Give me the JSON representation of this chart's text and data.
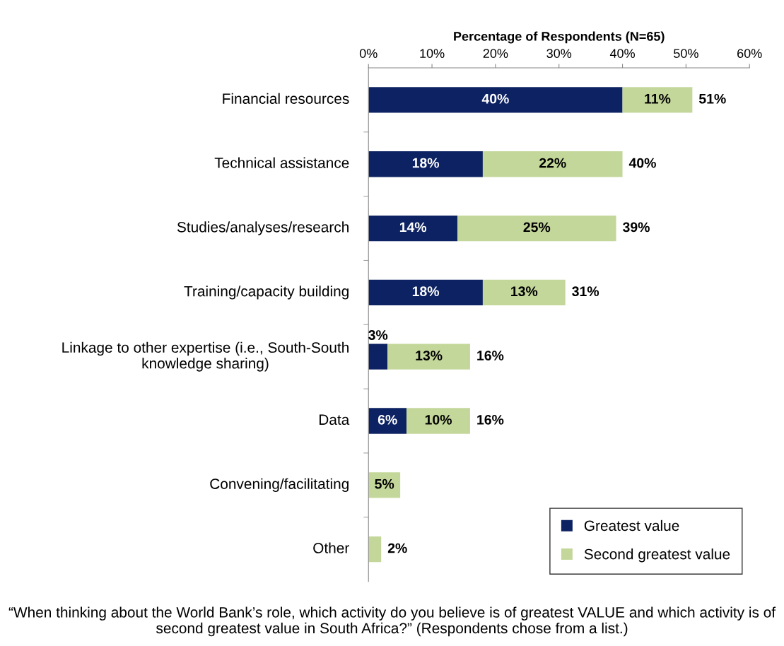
{
  "chart_data": {
    "type": "bar",
    "orientation": "horizontal",
    "stacked": true,
    "xlabel": "Percentage of Respondents (N=65)",
    "categories": [
      "Financial resources",
      "Technical assistance",
      "Studies/analyses/research",
      "Training/capacity building",
      "Linkage to other expertise (i.e., South-South knowledge sharing)",
      "Data",
      "Convening/facilitating",
      "Other"
    ],
    "series": [
      {
        "name": "Greatest value",
        "color": "#0d2262",
        "values": [
          40,
          18,
          14,
          18,
          3,
          6,
          null,
          null
        ],
        "value_labels": [
          "40%",
          "18%",
          "14%",
          "18%",
          "3%",
          "6%",
          null,
          null
        ]
      },
      {
        "name": "Second greatest value",
        "color": "#c4d79b",
        "values": [
          11,
          22,
          25,
          13,
          13,
          10,
          5,
          2
        ],
        "value_labels": [
          "11%",
          "22%",
          "25%",
          "13%",
          "13%",
          "10%",
          "5%",
          "2%"
        ]
      }
    ],
    "totals": [
      "51%",
      "40%",
      "39%",
      "31%",
      "16%",
      "16%",
      null,
      null
    ],
    "xlim": [
      0,
      60
    ],
    "xticks": [
      {
        "value": 0,
        "label": "0%"
      },
      {
        "value": 10,
        "label": "10%"
      },
      {
        "value": 20,
        "label": "20%"
      },
      {
        "value": 30,
        "label": "30%"
      },
      {
        "value": 40,
        "label": "40%"
      },
      {
        "value": 50,
        "label": "50%"
      },
      {
        "value": 60,
        "label": "60%"
      }
    ],
    "legend": "bottom right",
    "grid": false,
    "annotations": [
      "“When thinking about the World Bank’s role, which activity do you believe is of greatest VALUE and which activity is of second greatest value in South Africa?” (Respondents chose from a list.)"
    ]
  }
}
